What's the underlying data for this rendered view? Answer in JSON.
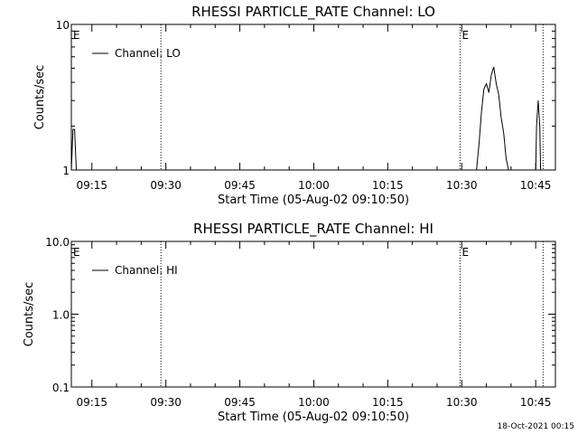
{
  "footer": {
    "timestamp": "18-Oct-2021 00:15"
  },
  "chart_data": [
    {
      "type": "line",
      "title": "RHESSI PARTICLE_RATE Channel: LO",
      "xlabel": "Start Time (05-Aug-02 09:10:50)",
      "ylabel": "Counts/sec",
      "y_scale": "log",
      "ylim": [
        1,
        10
      ],
      "y_ticks": [
        {
          "value": 1,
          "label": "1"
        },
        {
          "value": 10,
          "label": "10"
        }
      ],
      "xlim": [
        "09:10:50",
        "10:49:00"
      ],
      "x_ticks": [
        "09:15",
        "09:30",
        "09:45",
        "10:00",
        "10:15",
        "10:30",
        "10:45"
      ],
      "event_lines": [
        "09:29:00",
        "10:29:40",
        "10:46:30"
      ],
      "event_marks": [
        {
          "time": "09:10:50",
          "label": "E"
        },
        {
          "time": "10:29:40",
          "label": "E"
        }
      ],
      "legend": {
        "position": "top-left",
        "entries": [
          "Channel: LO"
        ]
      },
      "series": [
        {
          "name": "Channel: LO",
          "x": [
            "09:10:50",
            "09:11:10",
            "09:11:30",
            "09:11:50",
            "10:33:00",
            "10:33:30",
            "10:34:00",
            "10:34:30",
            "10:35:00",
            "10:35:30",
            "10:36:00",
            "10:36:30",
            "10:37:00",
            "10:37:30",
            "10:38:00",
            "10:38:30",
            "10:39:00",
            "10:39:30",
            "10:45:00",
            "10:45:10",
            "10:45:30",
            "10:45:50",
            "10:46:00"
          ],
          "y": [
            1.0,
            1.9,
            1.9,
            1.0,
            1.0,
            1.5,
            2.5,
            3.6,
            3.9,
            3.4,
            4.5,
            5.1,
            3.9,
            3.3,
            2.3,
            1.8,
            1.2,
            1.0,
            1.0,
            2.0,
            3.0,
            2.0,
            1.0
          ]
        }
      ]
    },
    {
      "type": "line",
      "title": "RHESSI PARTICLE_RATE Channel: HI",
      "xlabel": "Start Time (05-Aug-02 09:10:50)",
      "ylabel": "Counts/sec",
      "y_scale": "log",
      "ylim": [
        0.1,
        10
      ],
      "y_ticks": [
        {
          "value": 0.1,
          "label": "0.1"
        },
        {
          "value": 1,
          "label": "1.0"
        },
        {
          "value": 10,
          "label": "10.0"
        }
      ],
      "xlim": [
        "09:10:50",
        "10:49:00"
      ],
      "x_ticks": [
        "09:15",
        "09:30",
        "09:45",
        "10:00",
        "10:15",
        "10:30",
        "10:45"
      ],
      "event_lines": [
        "09:29:00",
        "10:29:40",
        "10:46:30"
      ],
      "event_marks": [
        {
          "time": "09:10:50",
          "label": "E"
        },
        {
          "time": "10:29:40",
          "label": "E"
        }
      ],
      "legend": {
        "position": "top-left",
        "entries": [
          "Channel: HI"
        ]
      },
      "series": [
        {
          "name": "Channel: HI",
          "x": [],
          "y": []
        }
      ]
    }
  ]
}
